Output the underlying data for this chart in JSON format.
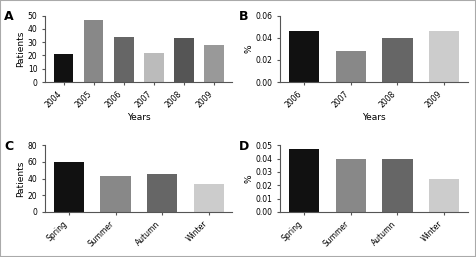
{
  "A": {
    "years": [
      "2004",
      "2005",
      "2006",
      "2007",
      "2008",
      "2009"
    ],
    "values": [
      21,
      47,
      34,
      22,
      33,
      28
    ],
    "colors": [
      "#111111",
      "#888888",
      "#666666",
      "#bbbbbb",
      "#555555",
      "#999999"
    ],
    "ylabel": "Patients",
    "xlabel": "Years",
    "ylim": [
      0,
      50
    ],
    "yticks": [
      0,
      10,
      20,
      30,
      40,
      50
    ],
    "label": "A"
  },
  "B": {
    "years": [
      "2006",
      "2007",
      "2008",
      "2009"
    ],
    "values": [
      0.046,
      0.028,
      0.04,
      0.046
    ],
    "colors": [
      "#111111",
      "#888888",
      "#666666",
      "#cccccc"
    ],
    "ylabel": "%",
    "xlabel": "Years",
    "ylim": [
      0,
      0.06
    ],
    "yticks": [
      0.0,
      0.02,
      0.04,
      0.06
    ],
    "label": "B"
  },
  "C": {
    "seasons": [
      "Spring",
      "Summer",
      "Autumn",
      "Winter"
    ],
    "values": [
      60,
      43,
      45,
      34
    ],
    "colors": [
      "#111111",
      "#888888",
      "#666666",
      "#cccccc"
    ],
    "ylabel": "Patients",
    "xlabel": "",
    "ylim": [
      0,
      80
    ],
    "yticks": [
      0,
      20,
      40,
      60,
      80
    ],
    "label": "C"
  },
  "D": {
    "seasons": [
      "Spring",
      "Summer",
      "Autumn",
      "Winter"
    ],
    "values": [
      0.047,
      0.04,
      0.04,
      0.025
    ],
    "colors": [
      "#111111",
      "#888888",
      "#666666",
      "#cccccc"
    ],
    "ylabel": "%",
    "xlabel": "",
    "ylim": [
      0,
      0.05
    ],
    "yticks": [
      0.0,
      0.01,
      0.02,
      0.03,
      0.04,
      0.05
    ],
    "label": "D"
  },
  "figure_bg": "#ffffff",
  "axes_bg": "#ffffff",
  "border_color": "#aaaaaa",
  "tick_fontsize": 5.5,
  "label_fontsize": 6.5,
  "panel_label_fontsize": 9
}
